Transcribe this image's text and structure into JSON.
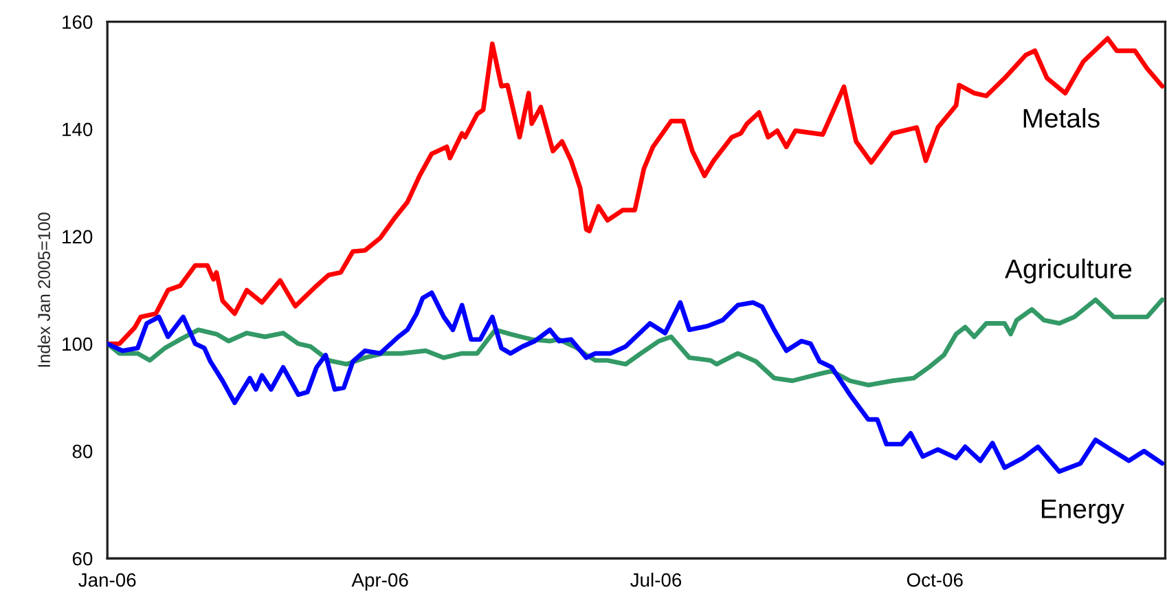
{
  "chart_data": {
    "type": "line",
    "ylabel": "Index Jan 2005=100",
    "xlim": [
      "2006-01-01",
      "2006-12-16"
    ],
    "xticks": [
      {
        "value": "2006-01-01",
        "label": "Jan-06"
      },
      {
        "value": "2006-04-01",
        "label": "Apr-06"
      },
      {
        "value": "2006-07-01",
        "label": "Jul-06"
      },
      {
        "value": "2006-10-01",
        "label": "Oct-06"
      }
    ],
    "ylim": [
      60,
      160
    ],
    "yticks": [
      60,
      80,
      100,
      120,
      140,
      160
    ],
    "grid": false,
    "legend": false,
    "line_style": "solid",
    "marker": "none",
    "series": [
      {
        "name": "Metals",
        "color": "#ff0000",
        "x": [
          "2006-01-01",
          "2006-01-05",
          "2006-01-10",
          "2006-01-12",
          "2006-01-17",
          "2006-01-21",
          "2006-01-25",
          "2006-01-30",
          "2006-02-03",
          "2006-02-05",
          "2006-02-06",
          "2006-02-08",
          "2006-02-12",
          "2006-02-16",
          "2006-02-21",
          "2006-02-27",
          "2006-03-04",
          "2006-03-11",
          "2006-03-15",
          "2006-03-19",
          "2006-03-23",
          "2006-03-27",
          "2006-04-01",
          "2006-04-06",
          "2006-04-10",
          "2006-04-14",
          "2006-04-18",
          "2006-04-23",
          "2006-04-24",
          "2006-04-28",
          "2006-04-29",
          "2006-05-03",
          "2006-05-05",
          "2006-05-08",
          "2006-05-11",
          "2006-05-13",
          "2006-05-17",
          "2006-05-20",
          "2006-05-21",
          "2006-05-24",
          "2006-05-28",
          "2006-05-31",
          "2006-06-03",
          "2006-06-06",
          "2006-06-08",
          "2006-06-09",
          "2006-06-12",
          "2006-06-15",
          "2006-06-20",
          "2006-06-24",
          "2006-06-27",
          "2006-06-30",
          "2006-07-06",
          "2006-07-10",
          "2006-07-13",
          "2006-07-17",
          "2006-07-20",
          "2006-07-26",
          "2006-07-29",
          "2006-07-31",
          "2006-08-04",
          "2006-08-07",
          "2006-08-10",
          "2006-08-13",
          "2006-08-16",
          "2006-08-25",
          "2006-08-28",
          "2006-09-01",
          "2006-09-05",
          "2006-09-10",
          "2006-09-17",
          "2006-09-25",
          "2006-09-28",
          "2006-10-02",
          "2006-10-08",
          "2006-10-09",
          "2006-10-14",
          "2006-10-18",
          "2006-10-24",
          "2006-10-31",
          "2006-11-03",
          "2006-11-07",
          "2006-11-13",
          "2006-11-19",
          "2006-11-27",
          "2006-11-30",
          "2006-12-06",
          "2006-12-10",
          "2006-12-15"
        ],
        "values": [
          100,
          100,
          103,
          105,
          105.6,
          110,
          110.8,
          114.6,
          114.6,
          112,
          113.3,
          108,
          105.6,
          110,
          107.7,
          111.8,
          107,
          110.8,
          112.8,
          113.3,
          117.2,
          117.4,
          119.7,
          123.6,
          126.4,
          131.3,
          135.4,
          136.7,
          134.6,
          139.2,
          138.5,
          142.8,
          143.6,
          155.9,
          148,
          148.2,
          138.5,
          146.7,
          141,
          144.1,
          135.9,
          137.7,
          134.1,
          129,
          121.3,
          121,
          125.6,
          123,
          124.9,
          124.9,
          132.6,
          136.7,
          141.5,
          141.5,
          135.9,
          131.3,
          134.1,
          138.5,
          139.2,
          141,
          143.1,
          138.5,
          139.7,
          136.7,
          139.7,
          139,
          142.8,
          147.9,
          137.7,
          133.8,
          139.2,
          140.3,
          134.1,
          140.3,
          144.4,
          148.2,
          146.7,
          146.2,
          149.5,
          153.8,
          154.6,
          149.5,
          146.7,
          152.6,
          156.9,
          154.6,
          154.6,
          151.3,
          148
        ]
      },
      {
        "name": "Agriculture",
        "color": "#339966",
        "x": [
          "2006-01-01",
          "2006-01-05",
          "2006-01-11",
          "2006-01-15",
          "2006-01-20",
          "2006-01-25",
          "2006-01-31",
          "2006-02-06",
          "2006-02-10",
          "2006-02-16",
          "2006-02-22",
          "2006-02-28",
          "2006-03-05",
          "2006-03-09",
          "2006-03-15",
          "2006-03-21",
          "2006-03-27",
          "2006-04-02",
          "2006-04-08",
          "2006-04-16",
          "2006-04-22",
          "2006-04-28",
          "2006-05-03",
          "2006-05-09",
          "2006-05-14",
          "2006-05-21",
          "2006-05-27",
          "2006-05-30",
          "2006-06-05",
          "2006-06-08",
          "2006-06-11",
          "2006-06-15",
          "2006-06-21",
          "2006-06-26",
          "2006-07-02",
          "2006-07-06",
          "2006-07-12",
          "2006-07-19",
          "2006-07-21",
          "2006-07-28",
          "2006-08-03",
          "2006-08-09",
          "2006-08-15",
          "2006-08-24",
          "2006-08-28",
          "2006-09-03",
          "2006-09-09",
          "2006-09-17",
          "2006-09-24",
          "2006-09-29",
          "2006-10-04",
          "2006-10-08",
          "2006-10-11",
          "2006-10-14",
          "2006-10-18",
          "2006-10-24",
          "2006-10-26",
          "2006-10-28",
          "2006-11-02",
          "2006-11-06",
          "2006-11-11",
          "2006-11-16",
          "2006-11-23",
          "2006-11-29",
          "2006-12-06",
          "2006-12-10",
          "2006-12-15"
        ],
        "values": [
          100,
          98.2,
          98.2,
          96.9,
          99.2,
          100.8,
          102.6,
          101.8,
          100.5,
          102,
          101.3,
          102,
          100,
          99.5,
          96.9,
          96.2,
          97.4,
          98.2,
          98.2,
          98.7,
          97.4,
          98.2,
          98.2,
          102.6,
          101.8,
          100.8,
          100.5,
          100.8,
          99.2,
          97.9,
          96.9,
          96.9,
          96.2,
          98.2,
          100.5,
          101.3,
          97.4,
          96.9,
          96.2,
          98.2,
          96.7,
          93.6,
          93.1,
          94.4,
          94.9,
          93.1,
          92.3,
          93.1,
          93.6,
          95.6,
          97.9,
          101.8,
          103.1,
          101.3,
          103.8,
          103.8,
          101.8,
          104.4,
          106.4,
          104.4,
          103.8,
          105,
          108.2,
          105,
          105,
          105,
          108.2
        ]
      },
      {
        "name": "Energy",
        "color": "#0000ff",
        "x": [
          "2006-01-01",
          "2006-01-06",
          "2006-01-11",
          "2006-01-14",
          "2006-01-18",
          "2006-01-21",
          "2006-01-26",
          "2006-01-30",
          "2006-02-02",
          "2006-02-04",
          "2006-02-08",
          "2006-02-12",
          "2006-02-17",
          "2006-02-19",
          "2006-02-21",
          "2006-02-24",
          "2006-02-28",
          "2006-03-05",
          "2006-03-08",
          "2006-03-11",
          "2006-03-14",
          "2006-03-17",
          "2006-03-20",
          "2006-03-23",
          "2006-03-27",
          "2006-04-01",
          "2006-04-07",
          "2006-04-10",
          "2006-04-13",
          "2006-04-15",
          "2006-04-18",
          "2006-04-22",
          "2006-04-25",
          "2006-04-28",
          "2006-05-01",
          "2006-05-04",
          "2006-05-08",
          "2006-05-11",
          "2006-05-14",
          "2006-05-18",
          "2006-05-22",
          "2006-05-27",
          "2006-05-30",
          "2006-06-03",
          "2006-06-08",
          "2006-06-11",
          "2006-06-16",
          "2006-06-21",
          "2006-06-29",
          "2006-07-04",
          "2006-07-09",
          "2006-07-12",
          "2006-07-18",
          "2006-07-23",
          "2006-07-28",
          "2006-08-02",
          "2006-08-05",
          "2006-08-09",
          "2006-08-13",
          "2006-08-18",
          "2006-08-21",
          "2006-08-24",
          "2006-08-28",
          "2006-09-03",
          "2006-09-09",
          "2006-09-12",
          "2006-09-15",
          "2006-09-20",
          "2006-09-23",
          "2006-09-27",
          "2006-10-02",
          "2006-10-08",
          "2006-10-11",
          "2006-10-16",
          "2006-10-20",
          "2006-10-24",
          "2006-10-30",
          "2006-11-04",
          "2006-11-11",
          "2006-11-18",
          "2006-11-23",
          "2006-11-28",
          "2006-12-04",
          "2006-12-09",
          "2006-12-15"
        ],
        "values": [
          100,
          98.7,
          99.2,
          103.8,
          105,
          101.3,
          105,
          100,
          99.2,
          96.7,
          93.1,
          89,
          93.6,
          91.5,
          94.1,
          91.5,
          95.6,
          90.5,
          91,
          95.6,
          97.9,
          91.5,
          91.8,
          96.7,
          98.7,
          98.2,
          101.3,
          102.6,
          105.6,
          108.5,
          109.5,
          105,
          102.6,
          107.2,
          100.8,
          100.8,
          105,
          99.2,
          98.2,
          99.5,
          100.5,
          102.6,
          100.5,
          100.8,
          97.4,
          98.2,
          98.2,
          99.5,
          103.8,
          102,
          107.7,
          102.6,
          103.3,
          104.4,
          107.2,
          107.7,
          106.9,
          102.6,
          98.7,
          100.5,
          100,
          96.7,
          95.6,
          90.5,
          85.9,
          85.9,
          81.3,
          81.3,
          83.3,
          79,
          80.3,
          78.7,
          80.8,
          78.2,
          81.5,
          76.9,
          78.7,
          80.8,
          76.2,
          77.7,
          82.1,
          80.3,
          78.2,
          80,
          77.7
        ]
      }
    ]
  }
}
